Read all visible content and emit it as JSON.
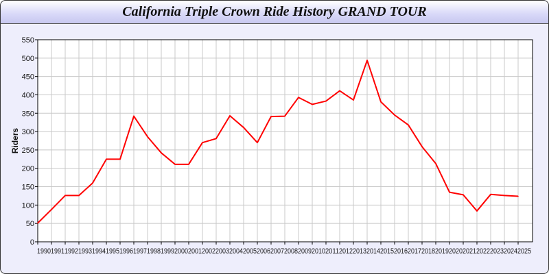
{
  "chart_data": {
    "type": "line",
    "title": "California Triple Crown Ride History GRAND TOUR",
    "xlabel": "",
    "ylabel": "Riders",
    "ylim": [
      0,
      550
    ],
    "yticks": [
      0,
      50,
      100,
      150,
      200,
      250,
      300,
      350,
      400,
      450,
      500,
      550
    ],
    "grid": true,
    "line_color": "#ff0000",
    "x": [
      1990,
      1991,
      1992,
      1993,
      1994,
      1995,
      1996,
      1997,
      1998,
      1999,
      2000,
      2001,
      2002,
      2003,
      2004,
      2005,
      2006,
      2007,
      2008,
      2009,
      2010,
      2011,
      2012,
      2013,
      2014,
      2015,
      2016,
      2017,
      2018,
      2019,
      2020,
      2021,
      2022,
      2023,
      2024,
      2025
    ],
    "values": [
      51,
      88,
      126,
      126,
      160,
      225,
      225,
      342,
      286,
      242,
      211,
      211,
      270,
      281,
      343,
      311,
      270,
      341,
      342,
      393,
      374,
      383,
      411,
      386,
      494,
      381,
      345,
      318,
      259,
      213,
      135,
      128,
      84,
      129,
      126,
      124
    ]
  }
}
